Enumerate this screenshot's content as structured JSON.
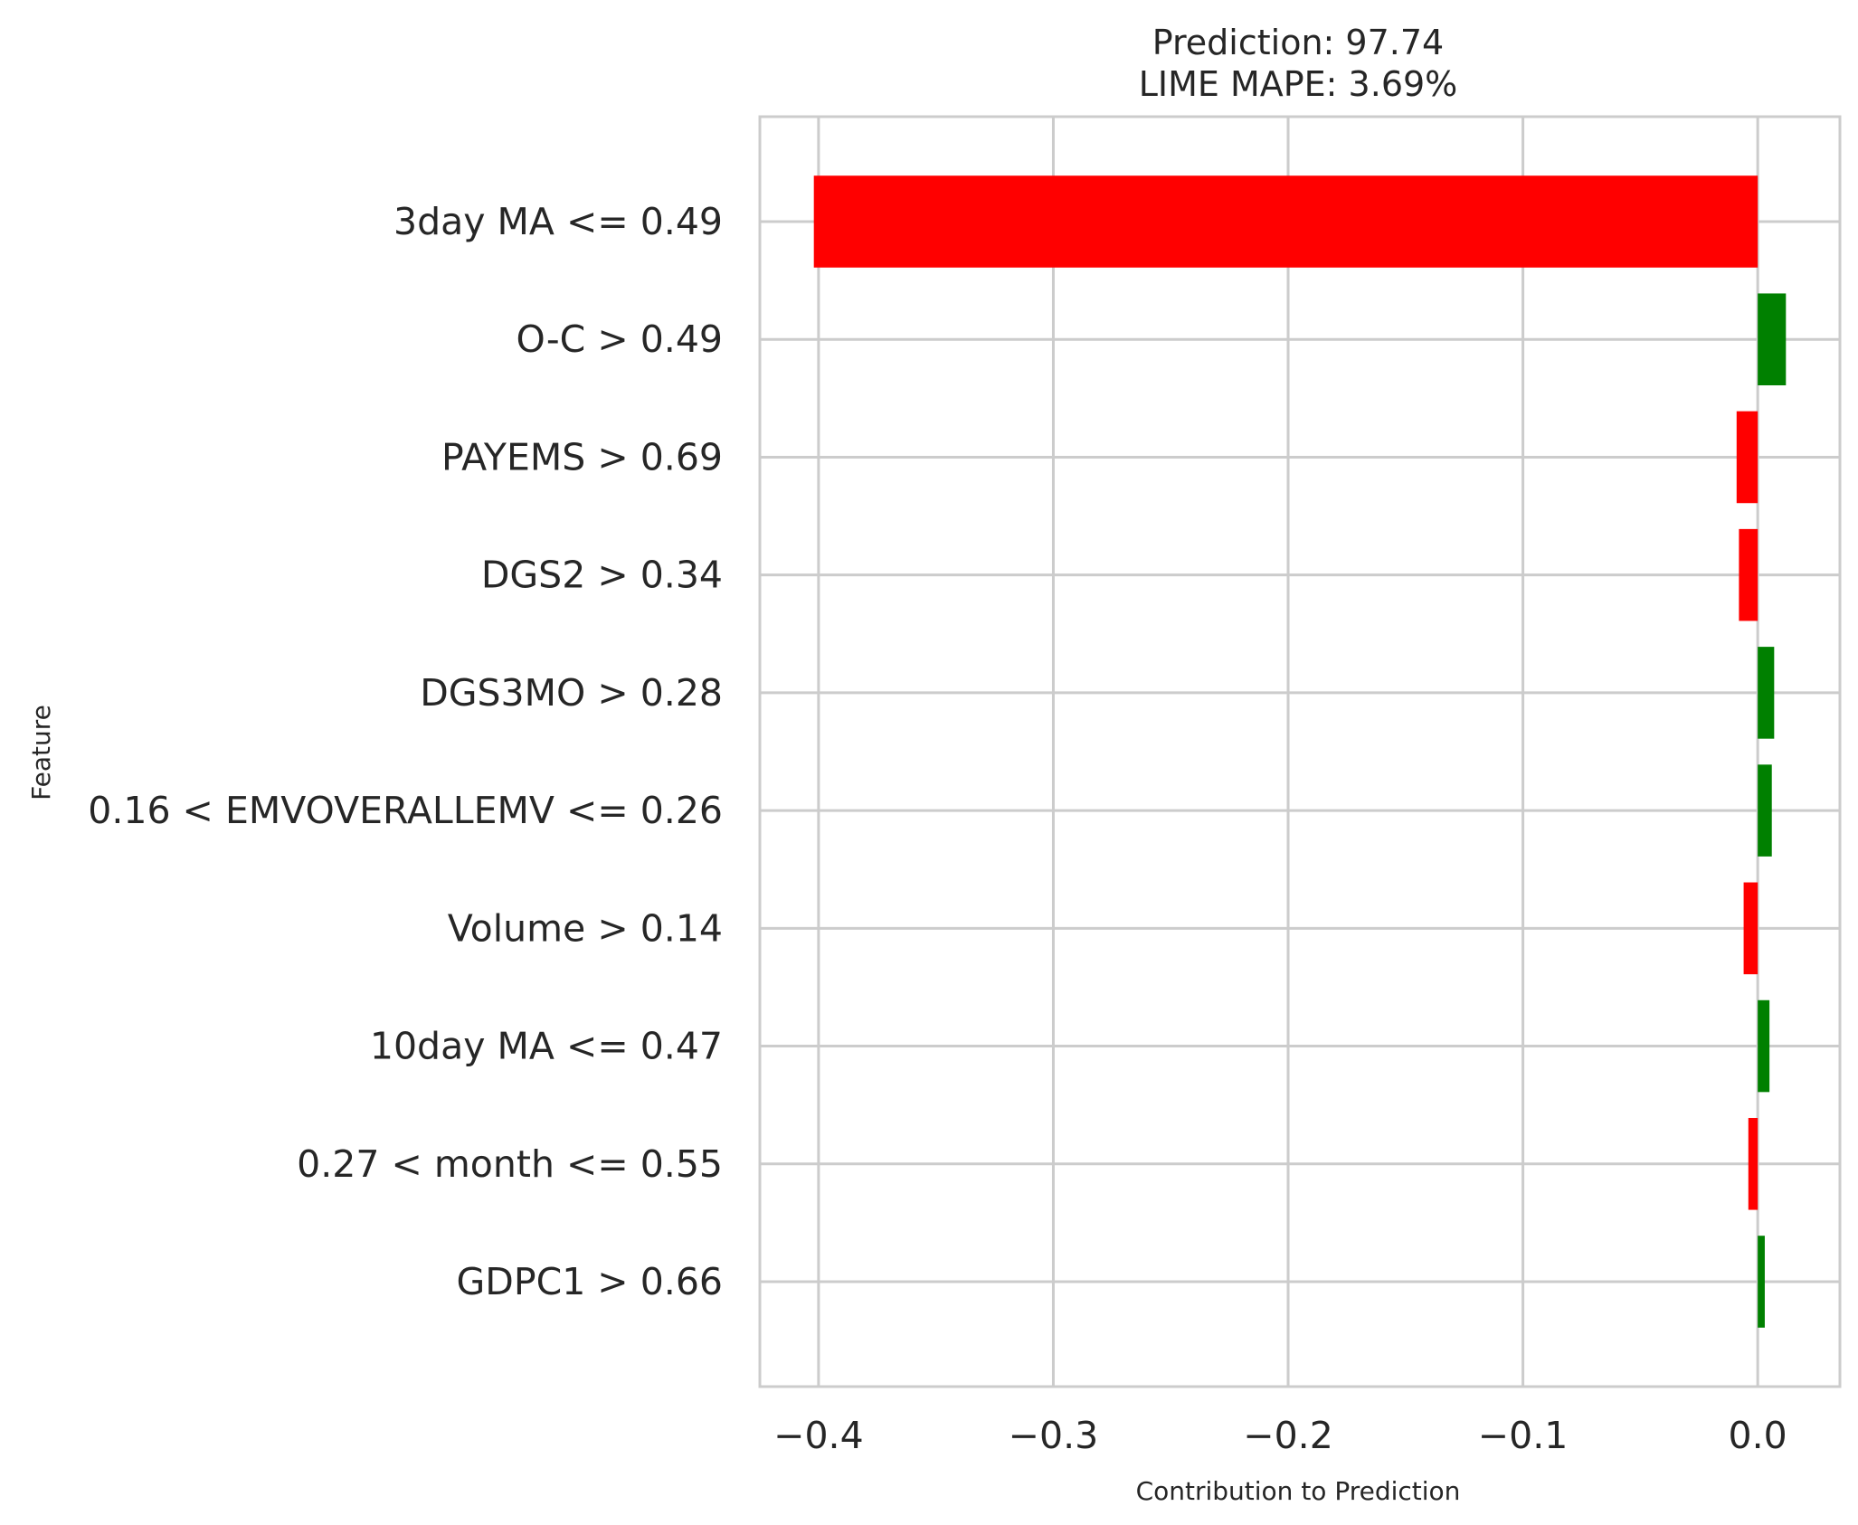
{
  "chart_data": {
    "type": "bar",
    "orientation": "horizontal",
    "title": "Prediction: 97.74",
    "subtitle": "LIME MAPE: 3.69%",
    "xlabel": "Contribution to Prediction",
    "ylabel": "Feature",
    "categories": [
      "3day MA <= 0.49",
      "O-C > 0.49",
      "PAYEMS > 0.69",
      "DGS2 > 0.34",
      "DGS3MO > 0.28",
      "0.16 < EMVOVERALLEMV <= 0.26",
      "Volume > 0.14",
      "10day MA <= 0.47",
      "0.27 < month <= 0.55",
      "GDPC1 > 0.66"
    ],
    "values": [
      -0.402,
      0.012,
      -0.009,
      -0.008,
      0.007,
      0.006,
      -0.006,
      0.005,
      -0.004,
      0.003
    ],
    "xlim": [
      -0.425,
      0.035
    ],
    "xticks": [
      -0.4,
      -0.3,
      -0.2,
      -0.1,
      0.0
    ],
    "xtick_labels": [
      "−0.4",
      "−0.3",
      "−0.2",
      "−0.1",
      "0.0"
    ],
    "grid": true,
    "colors": {
      "positive": "#008000",
      "negative": "#ff0000",
      "grid": "#cccccc",
      "text": "#262626"
    }
  }
}
